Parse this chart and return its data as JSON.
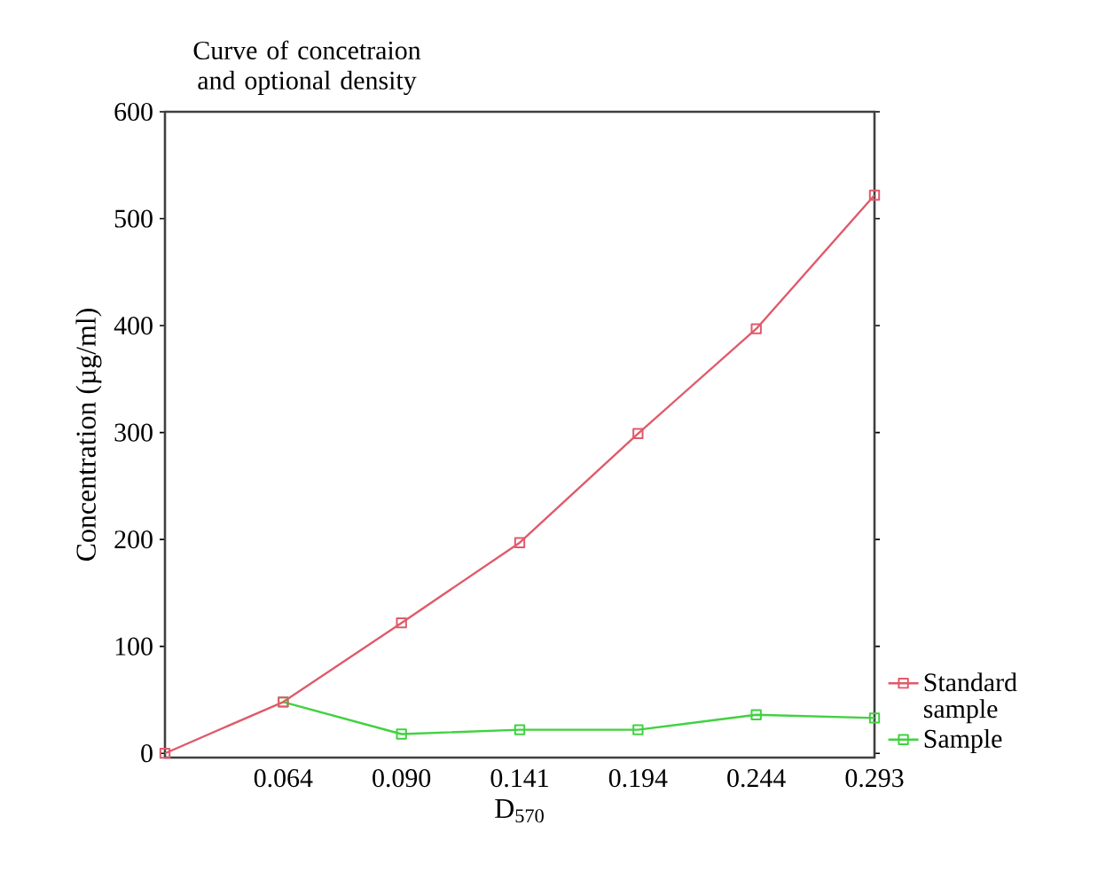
{
  "chart_data": {
    "type": "line",
    "title": "Curve of concetraion and optional density",
    "xlabel": "D$_{570}$",
    "ylabel": "Concentration (µg/ml)",
    "categories": [
      null,
      "0.064",
      "0.090",
      "0.141",
      "0.194",
      "0.244",
      "0.293"
    ],
    "series": [
      {
        "name": "Standard sample",
        "color": "#e05a6a",
        "values": [
          0,
          48,
          122,
          197,
          299,
          397,
          522
        ]
      },
      {
        "name": "Sample",
        "color": "#3fd23f",
        "values": [
          null,
          48,
          18,
          22,
          22,
          36,
          33
        ]
      }
    ],
    "ylim": [
      -4,
      600
    ],
    "yticks": [
      0,
      100,
      200,
      300,
      400,
      500,
      600
    ],
    "marker": "square",
    "line_style": "solid",
    "legend": "right",
    "grid": false
  }
}
